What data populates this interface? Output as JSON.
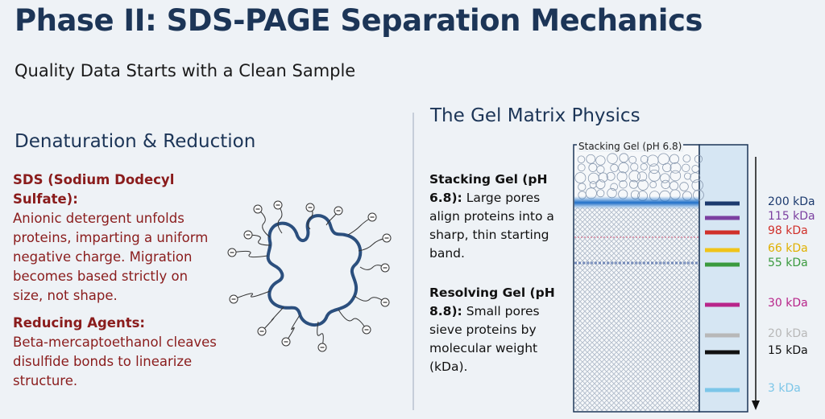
{
  "header": {
    "title": "Phase II: SDS-PAGE Separation Mechanics",
    "subtitle": "Quality Data Starts with a Clean Sample"
  },
  "left": {
    "heading": "Denaturation & Reduction",
    "items": [
      {
        "term": "SDS (Sodium Dodecyl Sulfate):",
        "text": "Anionic detergent unfolds proteins, imparting a uniform negative charge. Migration becomes based strictly on size, not shape."
      },
      {
        "term": "Reducing Agents:",
        "text": "Beta-mercaptoethanol cleaves disulfide bonds to linearize structure."
      }
    ]
  },
  "right": {
    "heading": "The Gel Matrix Physics",
    "gel_label": "Stacking Gel (pH 6.8)",
    "items": [
      {
        "term": "Stacking Gel (pH 6.8):",
        "text": "Large pores align proteins into a sharp, thin starting band."
      },
      {
        "term": "Resolving Gel (pH 8.8):",
        "text": "Small pores sieve proteins by molecular weight (kDa)."
      }
    ],
    "ladder": [
      {
        "label": "200 kDa",
        "color": "#1c3a6e"
      },
      {
        "label": "115 kDa",
        "color": "#7b3fa0"
      },
      {
        "label": "98 kDa",
        "color": "#d0302a"
      },
      {
        "label": "66 kDa",
        "color": "#f0c419"
      },
      {
        "label": "55 kDa",
        "color": "#3a9a3e"
      },
      {
        "label": "30 kDa",
        "color": "#b8258a"
      },
      {
        "label": "20 kDa",
        "color": "#b8b8b8"
      },
      {
        "label": "15 kDa",
        "color": "#111111"
      },
      {
        "label": "3 kDa",
        "color": "#7cc6e8"
      }
    ]
  }
}
